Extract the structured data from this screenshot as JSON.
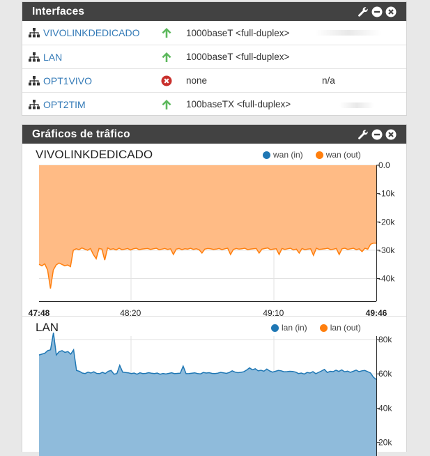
{
  "interfaces_panel": {
    "title": "Interfaces",
    "icons": [
      "wrench-icon",
      "minus-circle-icon",
      "close-circle-icon"
    ],
    "rows": [
      {
        "name": "VIVOLINKDEDICADO",
        "status": "up",
        "media": "1000baseT <full-duplex>",
        "address": ""
      },
      {
        "name": "LAN",
        "status": "up",
        "media": "1000baseT <full-duplex>",
        "address": ""
      },
      {
        "name": "OPT1VIVO",
        "status": "down",
        "media": "none",
        "address": "n/a"
      },
      {
        "name": "OPT2TIM",
        "status": "up",
        "media": "100baseTX <full-duplex>",
        "address": ""
      }
    ]
  },
  "traffic_panel": {
    "title": "Gráficos de trâfico",
    "icons": [
      "wrench-icon",
      "minus-circle-icon",
      "close-circle-icon"
    ]
  },
  "colors": {
    "in": "#1f77b4",
    "out": "#ff7f0e",
    "out_fill": "#ffbb85",
    "in_fill": "#8fbbdb",
    "up": "#5cb85c",
    "down": "#c9302c"
  },
  "chart_data": [
    {
      "type": "area",
      "title": "VIVOLINKDEDICADO",
      "legend": [
        "wan (in)",
        "wan (out)"
      ],
      "legend_placement": "top-right",
      "x_ticks": [
        "47:48",
        "48:20",
        "49:10",
        "49:46"
      ],
      "x_tick_seconds": [
        0,
        32,
        82,
        118
      ],
      "y_ticks": [
        "0.0",
        "-10k",
        "-20k",
        "-30k",
        "-40k"
      ],
      "ylim": [
        -48000,
        0
      ],
      "series": [
        {
          "name": "wan (in)",
          "values": [
            0
          ]
        },
        {
          "name": "wan (out)",
          "values": [
            -35000,
            -35500,
            -34800,
            -37000,
            -43500,
            -37000,
            -35200,
            -34500,
            -35000,
            -35500,
            -35200,
            -35800,
            -30000,
            -29500,
            -29800,
            -29200,
            -29600,
            -30000,
            -29400,
            -31500,
            -33000,
            -29400,
            -29600,
            -33500,
            -29200,
            -29700,
            -29500,
            -29900,
            -29300,
            -29800,
            -29600,
            -29400,
            -29900,
            -29500,
            -29300,
            -29800,
            -29600,
            -29500,
            -29400,
            -29700,
            -29500,
            -29300,
            -29800,
            -29600,
            -29400,
            -29700,
            -29500,
            -31500,
            -29600,
            -29400,
            -29800,
            -29500,
            -29600,
            -29300,
            -29700,
            -29500,
            -29800,
            -31000,
            -29600,
            -29400,
            -29500,
            -29700,
            -29600,
            -29400,
            -29800,
            -29500,
            -29300,
            -31500,
            -29700,
            -29400,
            -29600,
            -29500,
            -29300,
            -29800,
            -29600,
            -29500,
            -29400,
            -31000,
            -29600,
            -29400,
            -29200,
            -29800,
            -29600,
            -29500,
            -31500,
            -29400,
            -29700,
            -29500,
            -29300,
            -29900,
            -29600,
            -31000,
            -29400,
            -29800,
            -29600,
            -29500,
            -31800,
            -29300,
            -29700,
            -29600,
            -29500,
            -29300,
            -29800,
            -29600,
            -29400,
            -31500,
            -29500,
            -29300,
            -29700,
            -29500,
            -29300,
            -29800,
            -29500,
            -30500,
            -29300,
            -29600,
            -27900,
            -27500,
            -27500
          ]
        }
      ]
    },
    {
      "type": "area",
      "title": "LAN",
      "legend": [
        "lan (in)",
        "lan (out)"
      ],
      "legend_placement": "top-right",
      "y_ticks": [
        "80k",
        "60k",
        "40k",
        "20k"
      ],
      "ylim": [
        0,
        82000
      ],
      "series": [
        {
          "name": "lan (in)",
          "values": [
            71000,
            71500,
            72000,
            73500,
            74000,
            84000,
            71000,
            73000,
            73500,
            72500,
            73000,
            71500,
            74000,
            62000,
            61500,
            60500,
            60200,
            61000,
            60500,
            61200,
            60300,
            60100,
            60900,
            60200,
            61500,
            62000,
            59800,
            60200,
            65000,
            61000,
            60800,
            60600,
            60200,
            60500,
            59800,
            60600,
            60200,
            60300,
            60700,
            60400,
            60200,
            60500,
            59800,
            60200,
            59900,
            60300,
            60600,
            60100,
            60300,
            60400,
            64500,
            60100,
            60200,
            60400,
            60600,
            60200,
            60000,
            60800,
            60500,
            60700,
            60300,
            60200,
            60400,
            60900,
            60600,
            60300,
            60800,
            61800,
            61000,
            60700,
            60900,
            61200,
            62200,
            63500,
            62400,
            63000,
            61800,
            62100,
            61600,
            62800,
            61700,
            61000,
            61500,
            62000,
            61800,
            61200,
            61300,
            61500,
            61400,
            61000,
            60200,
            60500,
            59900,
            60800,
            60500,
            61300,
            60100,
            60900,
            61700,
            62600,
            60800,
            61500,
            61300,
            62100,
            61400,
            62300,
            61200,
            61600,
            60900,
            61500,
            62200,
            61300,
            61800,
            62000,
            61300,
            60500,
            58000,
            56700
          ]
        },
        {
          "name": "lan (out)",
          "values": [
            0
          ]
        }
      ]
    }
  ]
}
